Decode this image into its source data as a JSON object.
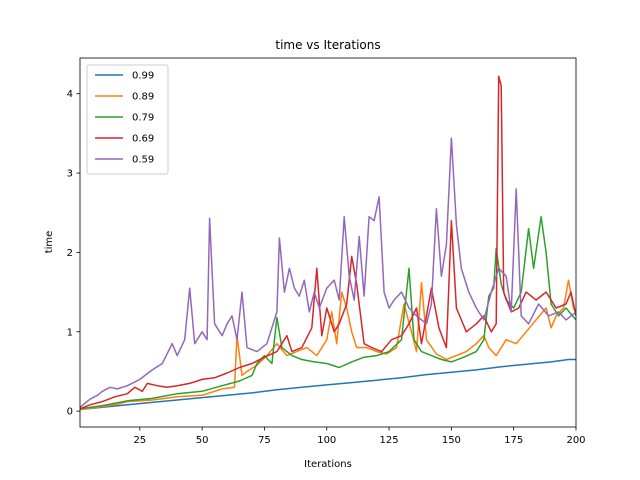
{
  "chart_data": {
    "type": "line",
    "title": "time vs Iterations",
    "xlabel": "Iterations",
    "ylabel": "time",
    "xlim": [
      1,
      200
    ],
    "ylim": [
      -0.2,
      4.45
    ],
    "xticks": [
      25,
      50,
      75,
      100,
      125,
      150,
      175,
      200
    ],
    "yticks": [
      0,
      1,
      2,
      3,
      4
    ],
    "legend_position": "top-left",
    "grid": false,
    "series": [
      {
        "name": "0.99",
        "color": "#1f77b4",
        "points": [
          [
            1,
            0.02
          ],
          [
            10,
            0.05
          ],
          [
            20,
            0.08
          ],
          [
            30,
            0.11
          ],
          [
            40,
            0.14
          ],
          [
            50,
            0.17
          ],
          [
            60,
            0.2
          ],
          [
            70,
            0.23
          ],
          [
            80,
            0.27
          ],
          [
            90,
            0.3
          ],
          [
            100,
            0.33
          ],
          [
            110,
            0.36
          ],
          [
            120,
            0.39
          ],
          [
            130,
            0.42
          ],
          [
            140,
            0.46
          ],
          [
            150,
            0.49
          ],
          [
            160,
            0.52
          ],
          [
            170,
            0.56
          ],
          [
            180,
            0.59
          ],
          [
            190,
            0.62
          ],
          [
            197,
            0.65
          ],
          [
            200,
            0.65
          ]
        ]
      },
      {
        "name": "0.89",
        "color": "#ff7f0e",
        "points": [
          [
            1,
            0.02
          ],
          [
            8,
            0.05
          ],
          [
            15,
            0.08
          ],
          [
            20,
            0.12
          ],
          [
            30,
            0.14
          ],
          [
            40,
            0.18
          ],
          [
            50,
            0.2
          ],
          [
            58,
            0.28
          ],
          [
            63,
            0.3
          ],
          [
            64,
            0.95
          ],
          [
            66,
            0.45
          ],
          [
            68,
            0.5
          ],
          [
            72,
            0.58
          ],
          [
            76,
            0.7
          ],
          [
            80,
            0.85
          ],
          [
            84,
            0.7
          ],
          [
            88,
            0.75
          ],
          [
            92,
            0.8
          ],
          [
            96,
            0.7
          ],
          [
            100,
            0.9
          ],
          [
            102,
            1.25
          ],
          [
            104,
            0.85
          ],
          [
            106,
            1.5
          ],
          [
            108,
            1.3
          ],
          [
            110,
            1.0
          ],
          [
            112,
            0.8
          ],
          [
            116,
            0.8
          ],
          [
            120,
            0.75
          ],
          [
            124,
            0.72
          ],
          [
            128,
            0.8
          ],
          [
            131,
            1.35
          ],
          [
            134,
            1.0
          ],
          [
            136,
            0.75
          ],
          [
            138,
            1.62
          ],
          [
            140,
            0.9
          ],
          [
            144,
            0.72
          ],
          [
            148,
            0.65
          ],
          [
            152,
            0.7
          ],
          [
            156,
            0.75
          ],
          [
            160,
            0.85
          ],
          [
            163,
            0.95
          ],
          [
            165,
            0.8
          ],
          [
            168,
            0.7
          ],
          [
            172,
            0.9
          ],
          [
            176,
            0.85
          ],
          [
            180,
            1.0
          ],
          [
            184,
            1.15
          ],
          [
            188,
            1.3
          ],
          [
            190,
            1.05
          ],
          [
            192,
            1.2
          ],
          [
            195,
            1.3
          ],
          [
            197,
            1.65
          ],
          [
            199,
            1.3
          ],
          [
            200,
            1.25
          ]
        ]
      },
      {
        "name": "0.79",
        "color": "#2ca02c",
        "points": [
          [
            1,
            0.03
          ],
          [
            10,
            0.07
          ],
          [
            20,
            0.13
          ],
          [
            30,
            0.16
          ],
          [
            40,
            0.22
          ],
          [
            50,
            0.25
          ],
          [
            58,
            0.32
          ],
          [
            65,
            0.38
          ],
          [
            70,
            0.45
          ],
          [
            72,
            0.6
          ],
          [
            75,
            0.7
          ],
          [
            78,
            0.6
          ],
          [
            80,
            1.18
          ],
          [
            82,
            0.8
          ],
          [
            86,
            0.7
          ],
          [
            90,
            0.65
          ],
          [
            95,
            0.62
          ],
          [
            100,
            0.6
          ],
          [
            105,
            0.55
          ],
          [
            110,
            0.62
          ],
          [
            115,
            0.68
          ],
          [
            120,
            0.7
          ],
          [
            125,
            0.75
          ],
          [
            130,
            0.9
          ],
          [
            133,
            1.8
          ],
          [
            135,
            0.9
          ],
          [
            138,
            0.75
          ],
          [
            142,
            0.7
          ],
          [
            146,
            0.65
          ],
          [
            150,
            0.62
          ],
          [
            155,
            0.68
          ],
          [
            160,
            0.75
          ],
          [
            163,
            0.9
          ],
          [
            165,
            1.45
          ],
          [
            167,
            1.55
          ],
          [
            168,
            2.05
          ],
          [
            170,
            1.6
          ],
          [
            172,
            1.4
          ],
          [
            175,
            1.3
          ],
          [
            178,
            1.5
          ],
          [
            181,
            2.3
          ],
          [
            183,
            1.8
          ],
          [
            186,
            2.45
          ],
          [
            188,
            2.0
          ],
          [
            190,
            1.35
          ],
          [
            193,
            1.2
          ],
          [
            196,
            1.3
          ],
          [
            200,
            1.15
          ]
        ]
      },
      {
        "name": "0.69",
        "color": "#d62728",
        "points": [
          [
            1,
            0.03
          ],
          [
            5,
            0.08
          ],
          [
            10,
            0.12
          ],
          [
            15,
            0.18
          ],
          [
            20,
            0.22
          ],
          [
            23,
            0.3
          ],
          [
            26,
            0.25
          ],
          [
            28,
            0.35
          ],
          [
            32,
            0.32
          ],
          [
            36,
            0.3
          ],
          [
            40,
            0.32
          ],
          [
            45,
            0.35
          ],
          [
            50,
            0.4
          ],
          [
            55,
            0.42
          ],
          [
            60,
            0.48
          ],
          [
            65,
            0.55
          ],
          [
            70,
            0.6
          ],
          [
            75,
            0.68
          ],
          [
            80,
            0.75
          ],
          [
            84,
            0.95
          ],
          [
            86,
            0.75
          ],
          [
            90,
            0.8
          ],
          [
            94,
            1.05
          ],
          [
            96,
            1.8
          ],
          [
            98,
            0.95
          ],
          [
            100,
            1.3
          ],
          [
            103,
            1.0
          ],
          [
            105,
            1.1
          ],
          [
            108,
            1.35
          ],
          [
            110,
            1.95
          ],
          [
            112,
            1.6
          ],
          [
            115,
            0.85
          ],
          [
            118,
            0.8
          ],
          [
            122,
            0.75
          ],
          [
            126,
            0.9
          ],
          [
            130,
            0.95
          ],
          [
            133,
            1.1
          ],
          [
            136,
            1.3
          ],
          [
            138,
            0.85
          ],
          [
            142,
            1.55
          ],
          [
            145,
            1.05
          ],
          [
            148,
            0.8
          ],
          [
            150,
            2.4
          ],
          [
            152,
            1.3
          ],
          [
            156,
            1.0
          ],
          [
            160,
            1.1
          ],
          [
            163,
            1.2
          ],
          [
            166,
            1.0
          ],
          [
            168,
            1.1
          ],
          [
            169,
            4.22
          ],
          [
            170,
            4.1
          ],
          [
            171,
            1.5
          ],
          [
            174,
            1.25
          ],
          [
            177,
            1.3
          ],
          [
            180,
            1.5
          ],
          [
            184,
            1.4
          ],
          [
            188,
            1.5
          ],
          [
            192,
            1.3
          ],
          [
            196,
            1.35
          ],
          [
            198,
            1.5
          ],
          [
            200,
            1.2
          ]
        ]
      },
      {
        "name": "0.59",
        "color": "#9467bd",
        "points": [
          [
            1,
            0.05
          ],
          [
            5,
            0.15
          ],
          [
            8,
            0.2
          ],
          [
            10,
            0.25
          ],
          [
            13,
            0.3
          ],
          [
            16,
            0.28
          ],
          [
            20,
            0.32
          ],
          [
            25,
            0.4
          ],
          [
            30,
            0.52
          ],
          [
            34,
            0.6
          ],
          [
            38,
            0.85
          ],
          [
            40,
            0.7
          ],
          [
            43,
            0.9
          ],
          [
            45,
            1.55
          ],
          [
            47,
            0.85
          ],
          [
            50,
            1.0
          ],
          [
            52,
            0.9
          ],
          [
            53,
            2.43
          ],
          [
            55,
            1.1
          ],
          [
            58,
            0.95
          ],
          [
            60,
            1.1
          ],
          [
            62,
            1.2
          ],
          [
            64,
            0.9
          ],
          [
            66,
            1.5
          ],
          [
            68,
            0.8
          ],
          [
            72,
            0.75
          ],
          [
            76,
            0.85
          ],
          [
            80,
            1.25
          ],
          [
            81,
            2.18
          ],
          [
            83,
            1.5
          ],
          [
            85,
            1.8
          ],
          [
            87,
            1.55
          ],
          [
            89,
            1.45
          ],
          [
            91,
            1.65
          ],
          [
            93,
            1.25
          ],
          [
            95,
            1.5
          ],
          [
            97,
            1.3
          ],
          [
            100,
            1.55
          ],
          [
            103,
            1.65
          ],
          [
            105,
            1.4
          ],
          [
            107,
            2.45
          ],
          [
            109,
            1.7
          ],
          [
            111,
            1.4
          ],
          [
            113,
            2.2
          ],
          [
            115,
            1.45
          ],
          [
            117,
            2.45
          ],
          [
            119,
            2.4
          ],
          [
            121,
            2.7
          ],
          [
            123,
            1.5
          ],
          [
            125,
            1.3
          ],
          [
            127,
            1.4
          ],
          [
            130,
            1.5
          ],
          [
            133,
            1.3
          ],
          [
            136,
            1.2
          ],
          [
            140,
            1.1
          ],
          [
            142,
            1.35
          ],
          [
            144,
            2.55
          ],
          [
            146,
            1.7
          ],
          [
            148,
            2.1
          ],
          [
            150,
            3.44
          ],
          [
            152,
            2.35
          ],
          [
            154,
            1.8
          ],
          [
            157,
            1.5
          ],
          [
            160,
            1.3
          ],
          [
            163,
            1.15
          ],
          [
            166,
            1.5
          ],
          [
            169,
            1.8
          ],
          [
            172,
            1.7
          ],
          [
            174,
            1.25
          ],
          [
            176,
            2.8
          ],
          [
            178,
            1.2
          ],
          [
            181,
            1.1
          ],
          [
            185,
            1.35
          ],
          [
            189,
            1.2
          ],
          [
            193,
            1.25
          ],
          [
            196,
            1.15
          ],
          [
            200,
            1.25
          ]
        ]
      }
    ]
  }
}
